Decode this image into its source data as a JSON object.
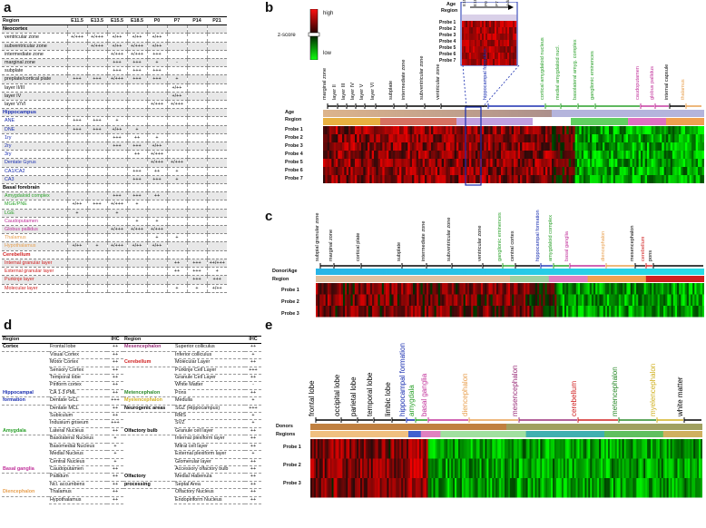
{
  "panel_letters": {
    "a": "a",
    "b": "b",
    "c": "c",
    "d": "d",
    "e": "e"
  },
  "panel_a": {
    "headers": [
      "Region",
      "E11.5",
      "E13.5",
      "E15.5",
      "E18.5",
      "P0",
      "P7",
      "P14",
      "P21"
    ],
    "rows": [
      {
        "name": "Neocortex",
        "group": true,
        "color": "#000000",
        "vals": [
          "",
          "",
          "",
          "",
          "",
          "",
          "",
          ""
        ]
      },
      {
        "name": "ventricular zone",
        "vals": [
          "+/+++",
          "+/+++",
          "+/++",
          "+/++",
          "+/++",
          "",
          "",
          ""
        ]
      },
      {
        "name": "subventricular zone",
        "vals": [
          "",
          "+/+++",
          "+/++",
          "+/+++",
          "+/++",
          "",
          "",
          ""
        ]
      },
      {
        "name": "intermediate zone",
        "vals": [
          "",
          "",
          "+/+++",
          "+/+++",
          "+++",
          "",
          "",
          ""
        ]
      },
      {
        "name": "marginal zone",
        "vals": [
          "",
          "",
          "+++",
          "+++",
          "+",
          "-",
          "",
          ""
        ]
      },
      {
        "name": "subplate",
        "vals": [
          "",
          "",
          "+++",
          "+++",
          "+++",
          "",
          "",
          ""
        ]
      },
      {
        "name": "preplate/cortical plate",
        "vals": [
          "+++",
          "+++",
          "+/+++",
          "+++",
          "+++",
          "+",
          "",
          ""
        ]
      },
      {
        "name": "layer II/III",
        "vals": [
          "",
          "",
          "",
          "",
          "",
          "+/++",
          "",
          ""
        ]
      },
      {
        "name": "layer IV",
        "vals": [
          "",
          "",
          "",
          "",
          "",
          "+/++",
          "",
          ""
        ]
      },
      {
        "name": "layer V/VI",
        "vals": [
          "",
          "",
          "",
          "",
          "+/+++",
          "+/+++",
          "",
          ""
        ]
      },
      {
        "name": "Hippocampus",
        "group": true,
        "color": "#1a2fb0",
        "vals": [
          "",
          "",
          "",
          "",
          "",
          "",
          "",
          ""
        ]
      },
      {
        "name": "ANE",
        "color": "#1a2fb0",
        "vals": [
          "+++",
          "+++",
          "+",
          "",
          "",
          "",
          "",
          ""
        ]
      },
      {
        "name": "DNE",
        "color": "#1a2fb0",
        "vals": [
          "+++",
          "+++",
          "+/++",
          "+",
          "",
          "",
          "",
          ""
        ]
      },
      {
        "name": "1ry",
        "color": "#1a2fb0",
        "vals": [
          "",
          "",
          "+++",
          "++",
          "+",
          "",
          "",
          ""
        ]
      },
      {
        "name": "2ry",
        "color": "#1a2fb0",
        "vals": [
          "",
          "",
          "+++",
          "+++",
          "+/++",
          "",
          "",
          ""
        ]
      },
      {
        "name": "3ry",
        "color": "#1a2fb0",
        "vals": [
          "",
          "",
          "",
          "++",
          "+/+++",
          "",
          "",
          ""
        ]
      },
      {
        "name": "Dentate Gyrus",
        "color": "#1a2fb0",
        "vals": [
          "",
          "",
          "",
          "",
          "+/+++",
          "+/+++",
          "",
          ""
        ]
      },
      {
        "name": "CA1/CA2",
        "color": "#1a2fb0",
        "vals": [
          "",
          "",
          "",
          "+++",
          "++",
          "+",
          "",
          ""
        ]
      },
      {
        "name": "CA3",
        "color": "#1a2fb0",
        "vals": [
          "",
          "",
          "",
          "+++",
          "+++",
          "+",
          "",
          ""
        ]
      },
      {
        "name": "Basal forebrain",
        "group": true,
        "color": "#000000",
        "vals": [
          "",
          "",
          "",
          "",
          "",
          "",
          "",
          ""
        ]
      },
      {
        "name": "Amygdaloid complex",
        "color": "#2aa02a",
        "vals": [
          "",
          "",
          "+++",
          "+++",
          "++",
          "",
          "",
          ""
        ]
      },
      {
        "name": "MGE/PNE",
        "color": "#2aa02a",
        "vals": [
          "+/++",
          "+++",
          "+/+++",
          "+",
          "",
          "",
          "",
          ""
        ]
      },
      {
        "name": "LGE",
        "color": "#2aa02a",
        "vals": [
          "+",
          "",
          "+",
          "",
          "",
          "",
          "",
          ""
        ]
      },
      {
        "name": "Caudoputamen",
        "color": "#c0309a",
        "vals": [
          "",
          "",
          "",
          "+",
          "+",
          "",
          "",
          ""
        ]
      },
      {
        "name": "Globus pallidus",
        "color": "#c0309a",
        "vals": [
          "",
          "",
          "+/+++",
          "+/+++",
          "+/+++",
          "",
          "",
          ""
        ]
      },
      {
        "name": "Thalamus",
        "color": "#e8a050",
        "vals": [
          "",
          "",
          "",
          "",
          "+",
          "+",
          "",
          ""
        ]
      },
      {
        "name": "Hypothalamus",
        "color": "#e8a050",
        "vals": [
          "+/++",
          "+",
          "+/+++",
          "+/++",
          "+/++",
          "",
          "",
          ""
        ]
      },
      {
        "name": "Cerebellum",
        "group": true,
        "color": "#d02020",
        "vals": [
          "",
          "",
          "",
          "",
          "",
          "",
          "",
          ""
        ]
      },
      {
        "name": "Internal granular layer",
        "color": "#d02020",
        "vals": [
          "",
          "",
          "",
          "",
          "",
          "++",
          "+++",
          "++/+++"
        ]
      },
      {
        "name": "External granular layer",
        "color": "#d02020",
        "vals": [
          "",
          "",
          "",
          "",
          "",
          "++",
          "+++",
          "+"
        ]
      },
      {
        "name": "Purkinje layer",
        "color": "#d02020",
        "vals": [
          "",
          "",
          "",
          "",
          "",
          "",
          "+++",
          "+++"
        ]
      },
      {
        "name": "Molecular layer",
        "color": "#d02020",
        "vals": [
          "",
          "",
          "",
          "",
          "",
          "+",
          "+",
          "+/++"
        ]
      }
    ]
  },
  "panel_b": {
    "zscore_label": "z-score",
    "high": "high",
    "low": "low",
    "inset_age": "Age",
    "inset_region": "Region",
    "inset_ages": [
      "E15",
      "E18",
      "P0",
      "P7",
      "Adult"
    ],
    "inset_probes": [
      "Probe 1",
      "Probe 2",
      "Probe 3",
      "Probe 4",
      "Probe 5",
      "Probe 6",
      "Probe 7"
    ],
    "row_labels": [
      "Age",
      "Region",
      "Probe 1",
      "Probe 2",
      "Probe 3",
      "Probe 4",
      "Probe 5",
      "Probe 6",
      "Probe 7"
    ],
    "top_labels": [
      {
        "t": "marginal zone",
        "c": "#000000"
      },
      {
        "t": "layer II",
        "c": "#000000"
      },
      {
        "t": "layer III",
        "c": "#000000"
      },
      {
        "t": "layer IV",
        "c": "#000000"
      },
      {
        "t": "layer V",
        "c": "#000000"
      },
      {
        "t": "layer VI",
        "c": "#000000"
      },
      {
        "t": "subplate",
        "c": "#000000"
      },
      {
        "t": "intermediate zone",
        "c": "#000000"
      },
      {
        "t": "subventricular zone",
        "c": "#000000"
      },
      {
        "t": "ventricular zone",
        "c": "#000000"
      },
      {
        "t": "hippocampal formation",
        "c": "#1a2fb0"
      },
      {
        "t": "cortical amygdaloid nucleus",
        "c": "#2aa02a"
      },
      {
        "t": "medial amygdaloid nucl.",
        "c": "#2aa02a"
      },
      {
        "t": "basolateral amyg. complex",
        "c": "#2aa02a"
      },
      {
        "t": "ganglionic eminences",
        "c": "#2aa02a"
      },
      {
        "t": "caudoputamen",
        "c": "#c0309a"
      },
      {
        "t": "globus pallidus",
        "c": "#c0309a"
      },
      {
        "t": "internal capsule",
        "c": "#000000"
      },
      {
        "t": "thalamus",
        "c": "#e8a050"
      }
    ]
  },
  "panel_c": {
    "row_labels": [
      "Donor/Age",
      "Region",
      "Probe 1",
      "Probe 2",
      "Probe 3"
    ],
    "top_labels": [
      {
        "t": "subpial granular zone",
        "c": "#000000"
      },
      {
        "t": "marginal zone",
        "c": "#000000"
      },
      {
        "t": "cortical plate",
        "c": "#000000"
      },
      {
        "t": "subplate",
        "c": "#000000"
      },
      {
        "t": "intermediate zone",
        "c": "#000000"
      },
      {
        "t": "subventricular zone",
        "c": "#000000"
      },
      {
        "t": "ventricular zone",
        "c": "#000000"
      },
      {
        "t": "ganglionic eminences",
        "c": "#2aa02a"
      },
      {
        "t": "central cortex",
        "c": "#000000"
      },
      {
        "t": "hippocampal formation",
        "c": "#1a2fb0"
      },
      {
        "t": "amygdaloid complex",
        "c": "#2aa02a"
      },
      {
        "t": "basal ganglia",
        "c": "#c0309a"
      },
      {
        "t": "diencephalon",
        "c": "#e8a050"
      },
      {
        "t": "mesencephalon",
        "c": "#000000"
      },
      {
        "t": "cerebellum",
        "c": "#d02020"
      },
      {
        "t": "pons",
        "c": "#000000"
      }
    ]
  },
  "panel_d": {
    "headers": [
      "Region",
      "",
      "IHC",
      "Region",
      "",
      "IHC"
    ],
    "rows": [
      [
        "Cortex",
        "Frontal lobe",
        "++",
        "Mesencephalon",
        "Superior colliculus",
        "++"
      ],
      [
        "",
        "Visual Cortex",
        "++",
        "",
        "Inferior colliculus",
        "+"
      ],
      [
        "",
        "Motor Cortex",
        "++",
        "Cerebellum",
        "Molecular Layer",
        "++"
      ],
      [
        "",
        "Sensory Cortex",
        "++",
        "",
        "Purkinje Cell Layer",
        "+++"
      ],
      [
        "",
        "Temporal lobe",
        "++",
        "",
        "Granule Cell Layer",
        "++"
      ],
      [
        "",
        "Piriform cortex",
        "++",
        "",
        "White Matter",
        "-"
      ],
      [
        "Hippocampal",
        "CA 1-3 PML",
        "++",
        "Metencephalon",
        "Pons",
        "++"
      ],
      [
        "formation",
        "Dentate GCL",
        "+++",
        "Myelencephalon",
        "Medulla",
        "+"
      ],
      [
        "",
        "Dentate MCL",
        "++",
        "Neurogenic areas",
        "SGZ (Hippocampus)",
        "+++"
      ],
      [
        "",
        "Subiculum",
        "++",
        "",
        "RMS",
        "+"
      ],
      [
        "",
        "Indusium griseum",
        "+++",
        "",
        "SVZ",
        "+"
      ],
      [
        "Amygdala",
        "Lateral Nucleus",
        "++",
        "Olfactory bulb",
        "Granule cell layer",
        "++"
      ],
      [
        "",
        "Basolateral Nucleus",
        "+",
        "",
        "Internal plexiform layer",
        "++"
      ],
      [
        "",
        "Basomedial Nucleus",
        "+",
        "",
        "Mitral cell layer",
        "++"
      ],
      [
        "",
        "Medial Nucleus",
        "+",
        "",
        "External plexiform layer",
        "+"
      ],
      [
        "",
        "Central Nucleus",
        "+",
        "",
        "Glomerular layer",
        "++"
      ],
      [
        "Basal ganglia",
        "Caudoputamen",
        "++",
        "",
        "Accessory olfactory bulb",
        "++"
      ],
      [
        "",
        "Pallidum",
        "++",
        "Olfactory",
        "Medial Habenula",
        "++"
      ],
      [
        "",
        "Ncl. accumbens",
        "++",
        "processing",
        "Septal Area",
        "++"
      ],
      [
        "Diencephalon",
        "Thalamus",
        "++",
        "",
        "Olfactory Nucleus",
        "++"
      ],
      [
        "",
        "Hypothalamus",
        "++",
        "",
        "Endopiriform Nucleus",
        "++"
      ]
    ],
    "colors_left": {
      "Cortex": "#000000",
      "Hippocampal": "#1a2fb0",
      "formation": "#1a2fb0",
      "Amygdala": "#2aa02a",
      "Basal ganglia": "#c0309a",
      "Diencephalon": "#e8a050"
    },
    "colors_right": {
      "Mesencephalon": "#9a2f7a",
      "Cerebellum": "#d02020",
      "Metencephalon": "#2a8a2a",
      "Myelencephalon": "#d0b020",
      "Neurogenic areas": "#000000",
      "Olfactory bulb": "#000000",
      "Olfactory": "#000000",
      "processing": "#000000"
    }
  },
  "panel_e": {
    "row_labels": [
      "Donors",
      "Regions",
      "Probe 1",
      "Probe 2",
      "Probe 3"
    ],
    "top_labels": [
      {
        "t": "frontal lobe",
        "c": "#000000"
      },
      {
        "t": "occipital lobe",
        "c": "#000000"
      },
      {
        "t": "parietal lobe",
        "c": "#000000"
      },
      {
        "t": "temporal lobe",
        "c": "#000000"
      },
      {
        "t": "limbic lobe",
        "c": "#000000"
      },
      {
        "t": "hippocampal formation",
        "c": "#1a2fb0"
      },
      {
        "t": "amygdala",
        "c": "#2aa02a"
      },
      {
        "t": "basal ganglia",
        "c": "#c0309a"
      },
      {
        "t": "diencephalon",
        "c": "#e8a050"
      },
      {
        "t": "mesencephalon",
        "c": "#9a2f7a"
      },
      {
        "t": "cerebellum",
        "c": "#d02020"
      },
      {
        "t": "metencephalon",
        "c": "#2a8a2a"
      },
      {
        "t": "myelencephalon",
        "c": "#d0b020"
      },
      {
        "t": "white matter",
        "c": "#000000"
      }
    ]
  }
}
